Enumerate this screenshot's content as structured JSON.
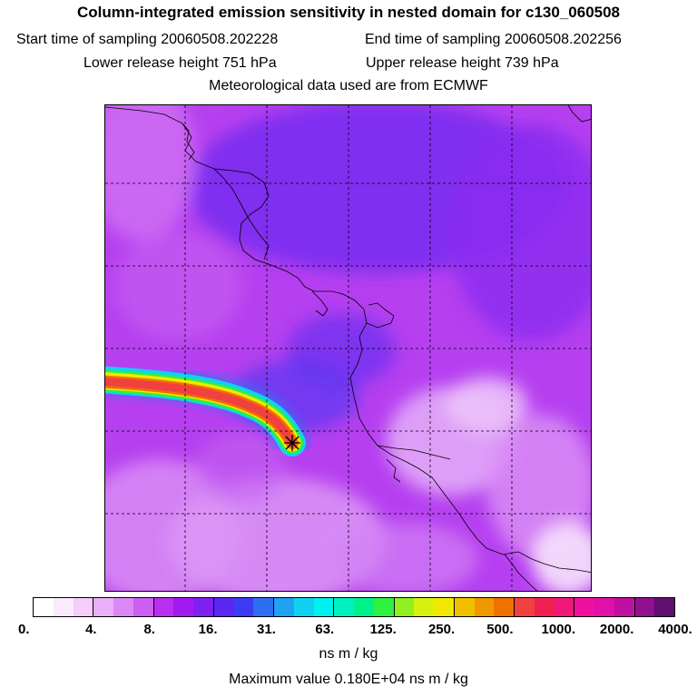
{
  "title": "Column-integrated emission sensitivity in nested domain for c130_060508",
  "sampling": {
    "start_label": "Start time of sampling",
    "start_value": "20060508.202228",
    "end_label": "End time of sampling",
    "end_value": "20060508.202256"
  },
  "release": {
    "lower_label": "Lower release height",
    "lower_value": "751 hPa",
    "upper_label": "Upper release height",
    "upper_value": "739 hPa"
  },
  "met_source": "Meteorological data used are from ECMWF",
  "colorbar": {
    "colors": [
      "#ffffff",
      "#fbeafd",
      "#f4cdfa",
      "#eab0f7",
      "#dc88f4",
      "#cc5ef1",
      "#b82ff0",
      "#a21af0",
      "#7e20f0",
      "#5a28f2",
      "#3b3cf4",
      "#2e6ef2",
      "#1fa2f0",
      "#10d2f0",
      "#00f0f0",
      "#00f0c0",
      "#00f08a",
      "#30f040",
      "#90f020",
      "#d8f010",
      "#f0e800",
      "#f0c000",
      "#f09800",
      "#f07000",
      "#f04040",
      "#f02050",
      "#f01878",
      "#f010a0",
      "#e010a8",
      "#c010a0",
      "#901090",
      "#601070"
    ],
    "tick_labels": [
      "0.",
      "4.",
      "8.",
      "16.",
      "31.",
      "63.",
      "125.",
      "250.",
      "500.",
      "1000.",
      "2000.",
      "4000."
    ],
    "units": "ns m / kg"
  },
  "max_value": {
    "label": "Maximum value",
    "value": "0.180E+04 ns m / kg"
  },
  "plume": {
    "release_site_marker": "star-marker",
    "peak_color": "#f04040"
  }
}
